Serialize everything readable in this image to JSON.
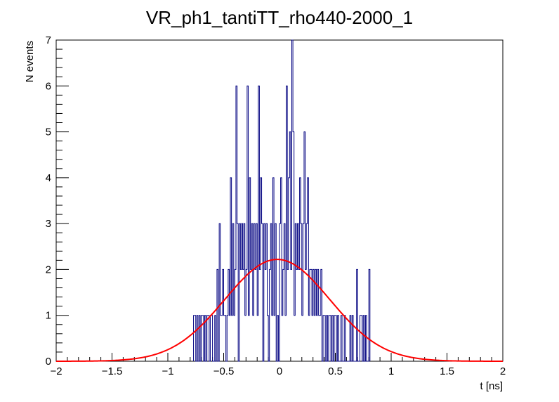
{
  "chart_data": {
    "type": "histogram",
    "title": "VR_ph1_tantiTT_rho440-2000_1",
    "xlabel": "t [ns]",
    "ylabel": "N events",
    "xlim": [
      -2,
      2
    ],
    "ylim": [
      0,
      7
    ],
    "x_ticks": [
      {
        "value": -2,
        "label": "−2"
      },
      {
        "value": -1.5,
        "label": "−1.5"
      },
      {
        "value": -1,
        "label": "−1"
      },
      {
        "value": -0.5,
        "label": "−0.5"
      },
      {
        "value": 0,
        "label": "0"
      },
      {
        "value": 0.5,
        "label": "0.5"
      },
      {
        "value": 1,
        "label": "1"
      },
      {
        "value": 1.5,
        "label": "1.5"
      },
      {
        "value": 2,
        "label": "2"
      }
    ],
    "y_ticks": [
      {
        "value": 0,
        "label": "0"
      },
      {
        "value": 1,
        "label": "1"
      },
      {
        "value": 2,
        "label": "2"
      },
      {
        "value": 3,
        "label": "3"
      },
      {
        "value": 4,
        "label": "4"
      },
      {
        "value": 5,
        "label": "5"
      },
      {
        "value": 6,
        "label": "6"
      },
      {
        "value": 7,
        "label": "7"
      }
    ],
    "histogram": {
      "name": "data",
      "color": "#000080",
      "bin_edges_range": [
        -2,
        2
      ],
      "bin_width": 0.01,
      "bins": [
        [
          -0.77,
          1
        ],
        [
          -0.76,
          1
        ],
        [
          -0.75,
          0
        ],
        [
          -0.74,
          1
        ],
        [
          -0.73,
          0
        ],
        [
          -0.72,
          1
        ],
        [
          -0.71,
          0
        ],
        [
          -0.7,
          1
        ],
        [
          -0.69,
          1
        ],
        [
          -0.68,
          0
        ],
        [
          -0.67,
          1
        ],
        [
          -0.66,
          0
        ],
        [
          -0.65,
          1
        ],
        [
          -0.64,
          1
        ],
        [
          -0.63,
          0
        ],
        [
          -0.62,
          1
        ],
        [
          -0.61,
          1
        ],
        [
          -0.6,
          0
        ],
        [
          -0.59,
          0
        ],
        [
          -0.58,
          1
        ],
        [
          -0.57,
          0
        ],
        [
          -0.56,
          2
        ],
        [
          -0.55,
          0
        ],
        [
          -0.54,
          3
        ],
        [
          -0.53,
          1
        ],
        [
          -0.52,
          1
        ],
        [
          -0.51,
          2
        ],
        [
          -0.5,
          1
        ],
        [
          -0.49,
          1
        ],
        [
          -0.48,
          0
        ],
        [
          -0.47,
          1
        ],
        [
          -0.46,
          2
        ],
        [
          -0.45,
          1
        ],
        [
          -0.44,
          4
        ],
        [
          -0.43,
          1
        ],
        [
          -0.42,
          3
        ],
        [
          -0.41,
          1
        ],
        [
          -0.4,
          2
        ],
        [
          -0.39,
          6
        ],
        [
          -0.38,
          3
        ],
        [
          -0.37,
          0
        ],
        [
          -0.36,
          3
        ],
        [
          -0.35,
          2
        ],
        [
          -0.34,
          3
        ],
        [
          -0.33,
          2
        ],
        [
          -0.32,
          3
        ],
        [
          -0.31,
          1
        ],
        [
          -0.3,
          2
        ],
        [
          -0.29,
          6
        ],
        [
          -0.28,
          1
        ],
        [
          -0.27,
          4
        ],
        [
          -0.26,
          2
        ],
        [
          -0.25,
          3
        ],
        [
          -0.24,
          1
        ],
        [
          -0.23,
          3
        ],
        [
          -0.22,
          2
        ],
        [
          -0.21,
          3
        ],
        [
          -0.2,
          1
        ],
        [
          -0.19,
          6
        ],
        [
          -0.18,
          2
        ],
        [
          -0.17,
          4
        ],
        [
          -0.16,
          3
        ],
        [
          -0.15,
          0
        ],
        [
          -0.14,
          3
        ],
        [
          -0.13,
          2
        ],
        [
          -0.12,
          3
        ],
        [
          -0.11,
          1
        ],
        [
          -0.1,
          0
        ],
        [
          -0.09,
          2
        ],
        [
          -0.08,
          3
        ],
        [
          -0.07,
          1
        ],
        [
          -0.06,
          4
        ],
        [
          -0.05,
          1
        ],
        [
          -0.04,
          3
        ],
        [
          -0.03,
          0
        ],
        [
          -0.02,
          1
        ],
        [
          -0.01,
          0
        ],
        [
          0.0,
          3
        ],
        [
          0.01,
          4
        ],
        [
          0.02,
          1
        ],
        [
          0.03,
          2
        ],
        [
          0.04,
          3
        ],
        [
          0.05,
          1
        ],
        [
          0.06,
          6
        ],
        [
          0.07,
          2
        ],
        [
          0.08,
          4
        ],
        [
          0.09,
          5
        ],
        [
          0.1,
          2
        ],
        [
          0.11,
          7
        ],
        [
          0.12,
          5
        ],
        [
          0.13,
          1
        ],
        [
          0.14,
          3
        ],
        [
          0.15,
          2
        ],
        [
          0.16,
          3
        ],
        [
          0.17,
          2
        ],
        [
          0.18,
          4
        ],
        [
          0.19,
          3
        ],
        [
          0.2,
          1
        ],
        [
          0.21,
          3
        ],
        [
          0.22,
          5
        ],
        [
          0.23,
          2
        ],
        [
          0.24,
          3
        ],
        [
          0.25,
          4
        ],
        [
          0.26,
          1
        ],
        [
          0.27,
          2
        ],
        [
          0.28,
          2
        ],
        [
          0.29,
          1
        ],
        [
          0.3,
          2
        ],
        [
          0.31,
          1
        ],
        [
          0.32,
          2
        ],
        [
          0.33,
          1
        ],
        [
          0.34,
          2
        ],
        [
          0.35,
          1
        ],
        [
          0.36,
          1
        ],
        [
          0.37,
          2
        ],
        [
          0.38,
          0
        ],
        [
          0.39,
          1
        ],
        [
          0.4,
          1
        ],
        [
          0.41,
          0
        ],
        [
          0.42,
          1
        ],
        [
          0.43,
          0
        ],
        [
          0.44,
          1
        ],
        [
          0.45,
          1
        ],
        [
          0.46,
          0
        ],
        [
          0.47,
          1
        ],
        [
          0.48,
          0
        ],
        [
          0.49,
          1
        ],
        [
          0.5,
          1
        ],
        [
          0.51,
          0
        ],
        [
          0.52,
          1
        ],
        [
          0.53,
          0
        ],
        [
          0.54,
          0
        ],
        [
          0.55,
          1
        ],
        [
          0.56,
          0
        ],
        [
          0.57,
          0
        ],
        [
          0.58,
          1
        ],
        [
          0.59,
          0
        ],
        [
          0.6,
          0
        ],
        [
          0.61,
          0
        ],
        [
          0.62,
          0
        ],
        [
          0.63,
          1
        ],
        [
          0.64,
          0
        ],
        [
          0.65,
          1
        ],
        [
          0.66,
          0
        ],
        [
          0.67,
          0
        ],
        [
          0.68,
          0
        ],
        [
          0.69,
          2
        ],
        [
          0.7,
          0
        ],
        [
          0.71,
          0
        ],
        [
          0.72,
          1
        ],
        [
          0.73,
          1
        ],
        [
          0.74,
          0
        ],
        [
          0.75,
          1
        ],
        [
          0.76,
          0
        ],
        [
          0.77,
          1
        ],
        [
          0.78,
          0
        ],
        [
          0.79,
          0
        ],
        [
          0.8,
          2
        ]
      ]
    },
    "fit": {
      "name": "gaussian fit",
      "color": "#ff0000",
      "function": "gaussian",
      "amplitude": 2.22,
      "mean": -0.02,
      "sigma": 0.47
    }
  }
}
